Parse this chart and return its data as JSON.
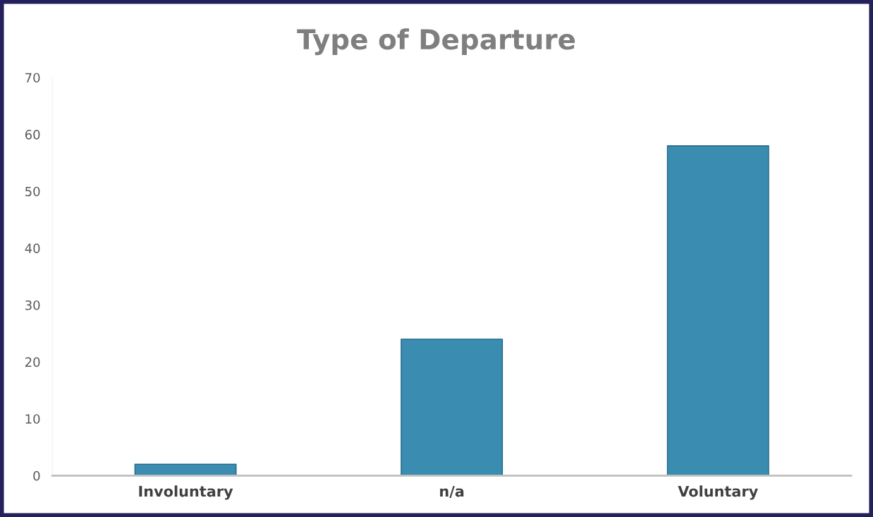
{
  "chart_data": {
    "type": "bar",
    "title": "Type of Departure",
    "categories": [
      "Involuntary",
      "n/a",
      "Voluntary"
    ],
    "values": [
      2,
      24,
      58
    ],
    "color": "#3a8db0",
    "ylim": [
      0,
      70
    ],
    "yticks": [
      0,
      10,
      20,
      30,
      40,
      50,
      60,
      70
    ],
    "grid": false
  }
}
